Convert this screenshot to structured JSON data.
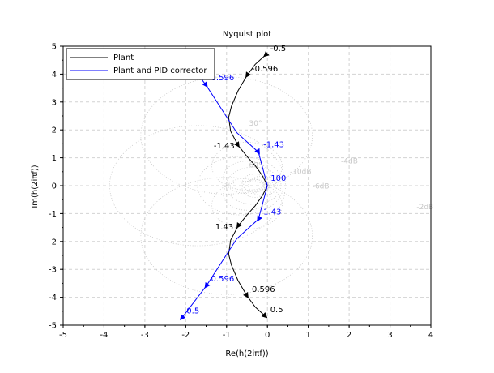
{
  "chart_data": {
    "type": "line",
    "title": "Nyquist plot",
    "xlabel": "Re(h(2iπf))",
    "ylabel": "Im(h(2iπf))",
    "xlim": [
      -5,
      4
    ],
    "ylim": [
      -5,
      5
    ],
    "xticks": [
      "-5",
      "-4",
      "-3",
      "-2",
      "-1",
      "0",
      "1",
      "2",
      "3",
      "4"
    ],
    "yticks": [
      "-5",
      "-4",
      "-3",
      "-2",
      "-1",
      "0",
      "1",
      "2",
      "3",
      "4",
      "5"
    ],
    "grid": true,
    "legend_position": "top-left",
    "colors": {
      "plant": "#000000",
      "pid": "#0000ff",
      "mgrid": "#c8c8c8"
    },
    "series": [
      {
        "name": "Plant",
        "points": [
          [
            -0.05,
            4.68
          ],
          [
            -0.3,
            4.35
          ],
          [
            -0.5,
            3.95
          ],
          [
            -0.72,
            3.4
          ],
          [
            -0.88,
            2.85
          ],
          [
            -0.95,
            2.45
          ],
          [
            -0.9,
            1.95
          ],
          [
            -0.72,
            1.45
          ],
          [
            -0.5,
            1.05
          ],
          [
            -0.3,
            0.72
          ],
          [
            -0.12,
            0.35
          ],
          [
            0,
            0
          ],
          [
            -0.12,
            -0.35
          ],
          [
            -0.3,
            -0.72
          ],
          [
            -0.5,
            -1.05
          ],
          [
            -0.72,
            -1.45
          ],
          [
            -0.9,
            -1.95
          ],
          [
            -0.95,
            -2.45
          ],
          [
            -0.88,
            -2.85
          ],
          [
            -0.72,
            -3.4
          ],
          [
            -0.5,
            -3.95
          ],
          [
            -0.3,
            -4.35
          ],
          [
            -0.05,
            -4.68
          ]
        ],
        "labels": [
          {
            "text": "-0.5",
            "x": -0.05,
            "y": 4.68
          },
          {
            "text": "-0.596",
            "x": -0.5,
            "y": 3.95
          },
          {
            "text": "-1.43",
            "x": -0.72,
            "y": 1.45
          },
          {
            "text": "1.43",
            "x": -0.72,
            "y": -1.45
          },
          {
            "text": "0.596",
            "x": -0.5,
            "y": -3.95
          },
          {
            "text": "0.5",
            "x": -0.05,
            "y": -4.68
          }
        ]
      },
      {
        "name": "Plant and PID corrector",
        "points": [
          [
            -2.1,
            4.75
          ],
          [
            -1.5,
            3.6
          ],
          [
            -0.75,
            1.9
          ],
          [
            -0.22,
            1.2
          ],
          [
            0,
            0
          ],
          [
            -0.22,
            -1.2
          ],
          [
            -0.75,
            -1.9
          ],
          [
            -1.5,
            -3.6
          ],
          [
            -2.1,
            -4.75
          ]
        ],
        "labels": [
          {
            "text": "0.596",
            "x": -1.5,
            "y": 3.6
          },
          {
            "text": "-1.43",
            "x": -0.22,
            "y": 1.2
          },
          {
            "text": "100",
            "x": 0,
            "y": 0
          },
          {
            "text": "1.43",
            "x": -0.22,
            "y": -1.2
          },
          {
            "text": "0.596",
            "x": -1.5,
            "y": -3.6
          },
          {
            "text": "0.5",
            "x": -2.1,
            "y": -4.75
          }
        ]
      }
    ],
    "mgrid_labels": [
      {
        "text": "30°",
        "x": -0.45,
        "y": 2.15
      },
      {
        "text": "60°",
        "x": -0.45,
        "y": 0.65
      },
      {
        "text": "-10dB",
        "x": 0.55,
        "y": 0.42
      },
      {
        "text": "-6dB",
        "x": 1.1,
        "y": -0.1
      },
      {
        "text": "-4dB",
        "x": 1.8,
        "y": 0.8
      },
      {
        "text": "-2dB",
        "x": 3.65,
        "y": -0.85
      }
    ]
  }
}
